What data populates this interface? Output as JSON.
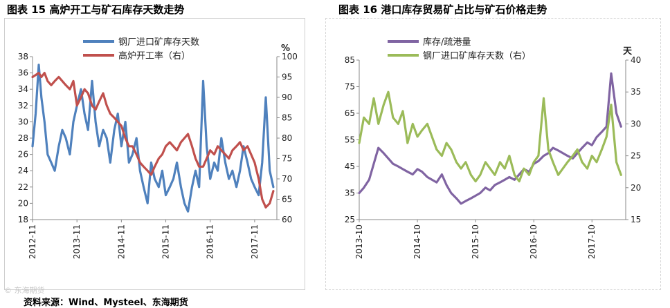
{
  "titles": {
    "left": "图表 15 高炉开工与矿石库存天数走势",
    "right": "图表 16 港口库存贸易矿占比与矿石价格走势"
  },
  "source": "资料来源：Wind、Mysteel、东海期货",
  "watermark": "© 东海期货",
  "chart_data": [
    {
      "type": "line",
      "title": "高炉开工与矿石库存天数走势",
      "categories": [
        "2012-11",
        "2013-11",
        "2014-11",
        "2015-11",
        "2016-11",
        "2017-11"
      ],
      "y_left": {
        "ylim": [
          18,
          38
        ],
        "ticks": [
          18,
          20,
          22,
          24,
          26,
          28,
          30,
          32,
          34,
          36,
          38
        ],
        "label": ""
      },
      "y_right": {
        "ylim": [
          60,
          100
        ],
        "ticks": [
          60,
          65,
          70,
          75,
          80,
          85,
          90,
          95,
          100
        ],
        "label": "%"
      },
      "x_range": [
        2012.83,
        2018.33
      ],
      "series": [
        {
          "name": "钢厂进口矿库存天数",
          "axis": "left",
          "color": "#4f81bd",
          "x": [
            2012.83,
            2012.9,
            2012.97,
            2013.03,
            2013.1,
            2013.17,
            2013.25,
            2013.33,
            2013.42,
            2013.5,
            2013.58,
            2013.67,
            2013.75,
            2013.83,
            2013.92,
            2014.0,
            2014.08,
            2014.17,
            2014.25,
            2014.33,
            2014.42,
            2014.5,
            2014.58,
            2014.67,
            2014.75,
            2014.83,
            2014.92,
            2015.0,
            2015.08,
            2015.17,
            2015.25,
            2015.33,
            2015.42,
            2015.5,
            2015.58,
            2015.67,
            2015.75,
            2015.83,
            2015.92,
            2016.0,
            2016.08,
            2016.17,
            2016.25,
            2016.33,
            2016.42,
            2016.5,
            2016.58,
            2016.67,
            2016.75,
            2016.83,
            2016.92,
            2017.0,
            2017.08,
            2017.17,
            2017.25,
            2017.33,
            2017.42,
            2017.5,
            2017.58,
            2017.67,
            2017.75,
            2017.83,
            2017.92,
            2018.0,
            2018.08,
            2018.17,
            2018.25
          ],
          "values": [
            27,
            31,
            37,
            33,
            30,
            26,
            25,
            24,
            27,
            29,
            28,
            26,
            30,
            32,
            34,
            31,
            29,
            35,
            30,
            27,
            29,
            28,
            25,
            29,
            31,
            27,
            30,
            25,
            26,
            28,
            24,
            22,
            20,
            25,
            23,
            22,
            24,
            21,
            22,
            23,
            25,
            22,
            20,
            19,
            22,
            24,
            22,
            35,
            27,
            23,
            25,
            24,
            28,
            25,
            23,
            24,
            22,
            24,
            27,
            25,
            23,
            22,
            21,
            25,
            33,
            24,
            22
          ]
        },
        {
          "name": "高炉开工率（右）",
          "axis": "right",
          "color": "#c0504d",
          "x": [
            2012.83,
            2012.9,
            2012.97,
            2013.03,
            2013.1,
            2013.17,
            2013.25,
            2013.33,
            2013.42,
            2013.5,
            2013.58,
            2013.67,
            2013.75,
            2013.83,
            2013.92,
            2014.0,
            2014.08,
            2014.17,
            2014.25,
            2014.33,
            2014.42,
            2014.5,
            2014.58,
            2014.67,
            2014.75,
            2014.83,
            2014.92,
            2015.0,
            2015.08,
            2015.17,
            2015.25,
            2015.33,
            2015.42,
            2015.5,
            2015.58,
            2015.67,
            2015.75,
            2015.83,
            2015.92,
            2016.0,
            2016.08,
            2016.17,
            2016.25,
            2016.33,
            2016.42,
            2016.5,
            2016.58,
            2016.67,
            2016.75,
            2016.83,
            2016.92,
            2017.0,
            2017.08,
            2017.17,
            2017.25,
            2017.33,
            2017.42,
            2017.5,
            2017.58,
            2017.67,
            2017.75,
            2017.83,
            2017.92,
            2018.0,
            2018.08,
            2018.17,
            2018.25
          ],
          "values": [
            95,
            95.5,
            96,
            95,
            96,
            94,
            93,
            94,
            95,
            94,
            93,
            92,
            94,
            88,
            90,
            92,
            91,
            88,
            87,
            89,
            91,
            88,
            86,
            85,
            84,
            83,
            80,
            78,
            78,
            76,
            74,
            73,
            72,
            71,
            73,
            75,
            76,
            78,
            79,
            78,
            77,
            79,
            80,
            81,
            78,
            75,
            73,
            73,
            75,
            77,
            76,
            78,
            77,
            76,
            75,
            77,
            78,
            79,
            77,
            78,
            76,
            74,
            70,
            65,
            63,
            64,
            67
          ]
        }
      ]
    },
    {
      "type": "line",
      "title": "港口库存贸易矿占比与矿石价格走势",
      "categories": [
        "2013-10",
        "2014-10",
        "2015-10",
        "2016-10",
        "2017-10"
      ],
      "y_left": {
        "ylim": [
          25,
          85
        ],
        "ticks": [
          25,
          35,
          45,
          55,
          65,
          75,
          85
        ],
        "label": ""
      },
      "y_right": {
        "ylim": [
          15,
          40
        ],
        "ticks": [
          15,
          20,
          25,
          30,
          35,
          40
        ],
        "label": "天"
      },
      "x_range": [
        2013.75,
        2018.33
      ],
      "series": [
        {
          "name": "库存/疏港量",
          "axis": "left",
          "color": "#8064a2",
          "x": [
            2013.75,
            2013.83,
            2013.92,
            2014.0,
            2014.08,
            2014.17,
            2014.25,
            2014.33,
            2014.42,
            2014.5,
            2014.58,
            2014.67,
            2014.75,
            2014.83,
            2014.92,
            2015.0,
            2015.08,
            2015.17,
            2015.25,
            2015.33,
            2015.42,
            2015.5,
            2015.58,
            2015.67,
            2015.75,
            2015.83,
            2015.92,
            2016.0,
            2016.08,
            2016.17,
            2016.25,
            2016.33,
            2016.42,
            2016.5,
            2016.58,
            2016.67,
            2016.75,
            2016.83,
            2016.92,
            2017.0,
            2017.08,
            2017.17,
            2017.25,
            2017.33,
            2017.42,
            2017.5,
            2017.58,
            2017.67,
            2017.75,
            2017.83,
            2017.92,
            2018.0,
            2018.08,
            2018.17,
            2018.25
          ],
          "values": [
            35,
            37,
            40,
            46,
            52,
            50,
            48,
            46,
            45,
            44,
            43,
            42,
            44,
            43,
            41,
            40,
            39,
            42,
            38,
            35,
            33,
            31,
            32,
            33,
            34,
            35,
            37,
            36,
            38,
            39,
            40,
            41,
            40,
            42,
            44,
            43,
            46,
            47,
            49,
            50,
            52,
            51,
            50,
            49,
            48,
            50,
            52,
            54,
            53,
            56,
            58,
            60,
            80,
            65,
            60
          ]
        },
        {
          "name": "钢厂进口矿库存天数（右）",
          "axis": "right",
          "color": "#9bbb59",
          "x": [
            2013.75,
            2013.83,
            2013.92,
            2014.0,
            2014.08,
            2014.17,
            2014.25,
            2014.33,
            2014.42,
            2014.5,
            2014.58,
            2014.67,
            2014.75,
            2014.83,
            2014.92,
            2015.0,
            2015.08,
            2015.17,
            2015.25,
            2015.33,
            2015.42,
            2015.5,
            2015.58,
            2015.67,
            2015.75,
            2015.83,
            2015.92,
            2016.0,
            2016.08,
            2016.17,
            2016.25,
            2016.33,
            2016.42,
            2016.5,
            2016.58,
            2016.67,
            2016.75,
            2016.83,
            2016.92,
            2017.0,
            2017.08,
            2017.17,
            2017.25,
            2017.33,
            2017.42,
            2017.5,
            2017.58,
            2017.67,
            2017.75,
            2017.83,
            2017.92,
            2018.0,
            2018.08,
            2018.17,
            2018.25
          ],
          "values": [
            27,
            31,
            30,
            34,
            30,
            33,
            35,
            31,
            30,
            32,
            27,
            30,
            28,
            29,
            30,
            28,
            26,
            25,
            27,
            26,
            24,
            23,
            24,
            22,
            21,
            22,
            24,
            23,
            22,
            24,
            23,
            25,
            22,
            21,
            23,
            22,
            24,
            25,
            34,
            26,
            24,
            22,
            23,
            24,
            25,
            26,
            24,
            23,
            25,
            24,
            26,
            28,
            33,
            24,
            22
          ]
        }
      ]
    }
  ]
}
